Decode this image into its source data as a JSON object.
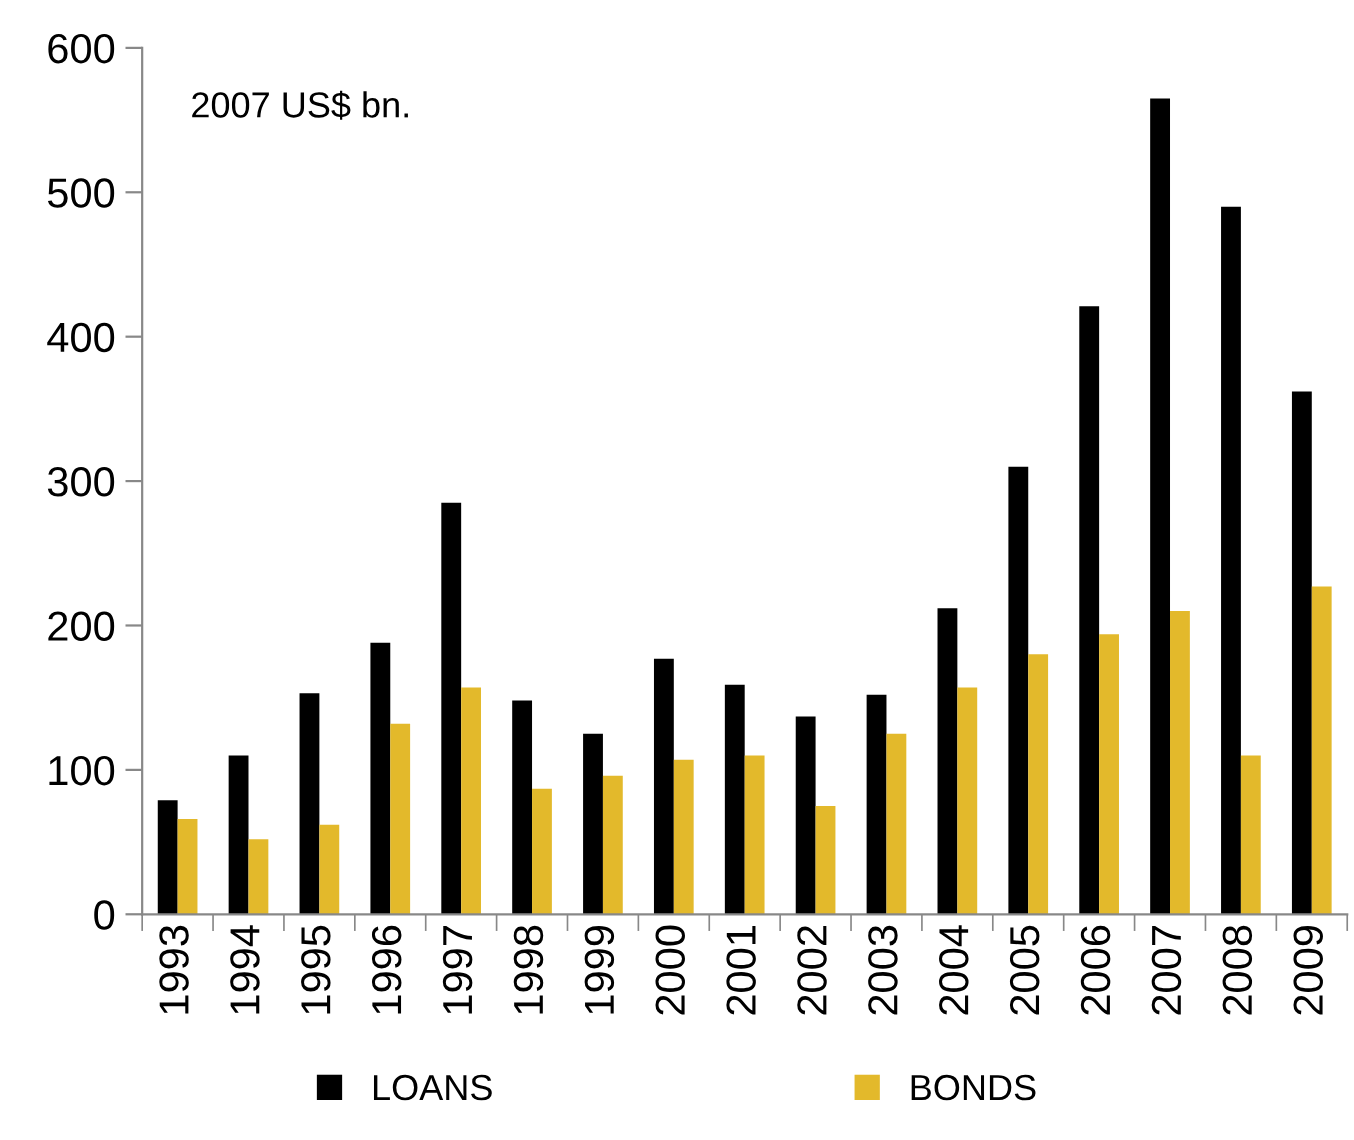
{
  "chart_data": {
    "type": "bar",
    "categories": [
      "1993",
      "1994",
      "1995",
      "1996",
      "1997",
      "1998",
      "1999",
      "2000",
      "2001",
      "2002",
      "2003",
      "2004",
      "2005",
      "2006",
      "2007",
      "2008",
      "2009"
    ],
    "series": [
      {
        "name": "LOANS",
        "color": "#000000",
        "values": [
          79,
          110,
          153,
          188,
          285,
          148,
          125,
          177,
          159,
          137,
          152,
          212,
          310,
          421,
          565,
          490,
          362
        ]
      },
      {
        "name": "BONDS",
        "color": "#e3b92b",
        "values": [
          66,
          52,
          62,
          132,
          157,
          87,
          96,
          107,
          110,
          75,
          125,
          157,
          180,
          194,
          210,
          110,
          227
        ]
      }
    ],
    "annotations": [
      "2007 US$ bn."
    ],
    "ylim": [
      0,
      600
    ],
    "yticks": [
      0,
      100,
      200,
      300,
      400,
      500,
      600
    ],
    "grid": false,
    "legend": "bottom"
  }
}
